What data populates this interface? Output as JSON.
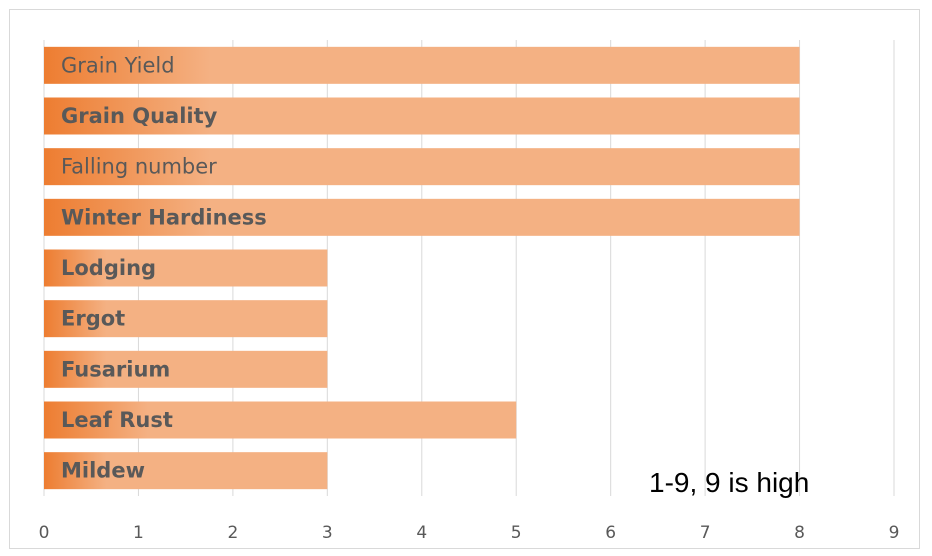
{
  "chart_data": {
    "type": "bar",
    "orientation": "horizontal",
    "categories": [
      "Grain Yield",
      "Grain Quality",
      "Falling number",
      "Winter Hardiness",
      "Lodging",
      "Ergot",
      "Fusarium",
      "Leaf Rust",
      "Mildew"
    ],
    "bold": [
      false,
      true,
      false,
      true,
      true,
      true,
      true,
      true,
      true
    ],
    "values": [
      8,
      8,
      8,
      8,
      3,
      3,
      3,
      5,
      3
    ],
    "xlim": [
      0,
      9
    ],
    "xticks": [
      "0",
      "1",
      "2",
      "3",
      "4",
      "5",
      "6",
      "7",
      "8",
      "9"
    ],
    "grid": true,
    "bar_color": "#f4b183",
    "bar_color_dark": "#ed7d31",
    "annotation": "1-9, 9 is high",
    "title": "",
    "xlabel": "",
    "ylabel": ""
  }
}
